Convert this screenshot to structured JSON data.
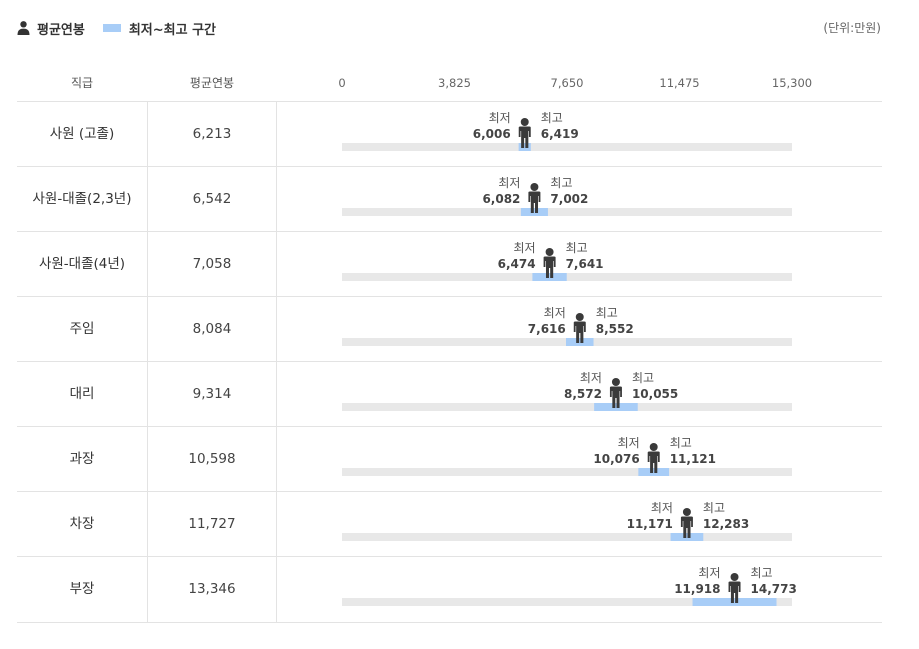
{
  "legend": {
    "avg_label": "평균연봉",
    "range_label": "최저~최고 구간"
  },
  "unit": "(단위:만원)",
  "headers": {
    "rank": "직급",
    "avg": "평균연봉"
  },
  "min_label": "최저",
  "max_label": "최고",
  "colors": {
    "track": "#e8e8e8",
    "range": "#a8cdf7",
    "person": "#3a3a3a"
  },
  "chart_data": {
    "type": "bar",
    "xlim": [
      0,
      15300
    ],
    "ticks": [
      "0",
      "3,825",
      "7,650",
      "11,475",
      "15,300"
    ],
    "tick_values": [
      0,
      3825,
      7650,
      11475,
      15300
    ],
    "rows": [
      {
        "rank": "사원 (고졸)",
        "avg": 6213,
        "avg_label": "6,213",
        "min": 6006,
        "min_label": "6,006",
        "max": 6419,
        "max_label": "6,419"
      },
      {
        "rank": "사원-대졸(2,3년)",
        "avg": 6542,
        "avg_label": "6,542",
        "min": 6082,
        "min_label": "6,082",
        "max": 7002,
        "max_label": "7,002"
      },
      {
        "rank": "사원-대졸(4년)",
        "avg": 7058,
        "avg_label": "7,058",
        "min": 6474,
        "min_label": "6,474",
        "max": 7641,
        "max_label": "7,641"
      },
      {
        "rank": "주임",
        "avg": 8084,
        "avg_label": "8,084",
        "min": 7616,
        "min_label": "7,616",
        "max": 8552,
        "max_label": "8,552"
      },
      {
        "rank": "대리",
        "avg": 9314,
        "avg_label": "9,314",
        "min": 8572,
        "min_label": "8,572",
        "max": 10055,
        "max_label": "10,055"
      },
      {
        "rank": "과장",
        "avg": 10598,
        "avg_label": "10,598",
        "min": 10076,
        "min_label": "10,076",
        "max": 11121,
        "max_label": "11,121"
      },
      {
        "rank": "차장",
        "avg": 11727,
        "avg_label": "11,727",
        "min": 11171,
        "min_label": "11,171",
        "max": 12283,
        "max_label": "12,283"
      },
      {
        "rank": "부장",
        "avg": 13346,
        "avg_label": "13,346",
        "min": 11918,
        "min_label": "11,918",
        "max": 14773,
        "max_label": "14,773"
      }
    ]
  }
}
